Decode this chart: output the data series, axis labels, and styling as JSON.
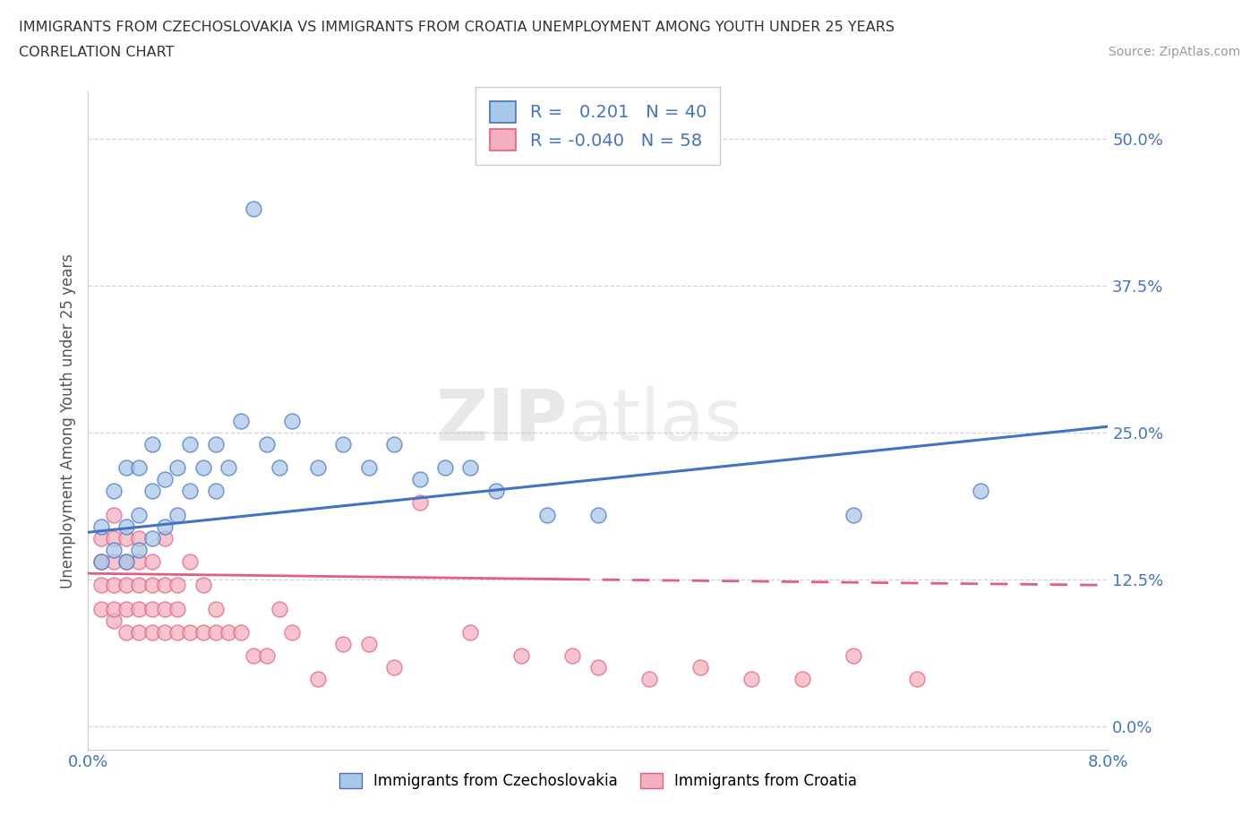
{
  "title_line1": "IMMIGRANTS FROM CZECHOSLOVAKIA VS IMMIGRANTS FROM CROATIA UNEMPLOYMENT AMONG YOUTH UNDER 25 YEARS",
  "title_line2": "CORRELATION CHART",
  "source": "Source: ZipAtlas.com",
  "ylabel": "Unemployment Among Youth under 25 years",
  "xlim": [
    0.0,
    0.08
  ],
  "ylim": [
    -0.02,
    0.54
  ],
  "yticks": [
    0.0,
    0.125,
    0.25,
    0.375,
    0.5
  ],
  "yticklabels": [
    "0.0%",
    "12.5%",
    "25.0%",
    "37.5%",
    "50.0%"
  ],
  "xticks": [
    0.0,
    0.02,
    0.04,
    0.06,
    0.08
  ],
  "xticklabels": [
    "0.0%",
    "",
    "",
    "",
    "8.0%"
  ],
  "color_czechoslovakia": "#a8c8e8",
  "color_croatia": "#f4b0c0",
  "line_color_czechoslovakia": "#4472c4",
  "line_color_croatia": "#e06080",
  "background_color": "#ffffff",
  "grid_color": "#c8c8c8",
  "watermark_zip": "ZIP",
  "watermark_atlas": "atlas",
  "czechoslovakia_x": [
    0.001,
    0.001,
    0.002,
    0.002,
    0.003,
    0.003,
    0.003,
    0.004,
    0.004,
    0.004,
    0.005,
    0.005,
    0.005,
    0.006,
    0.006,
    0.007,
    0.007,
    0.008,
    0.008,
    0.009,
    0.01,
    0.01,
    0.011,
    0.012,
    0.013,
    0.014,
    0.015,
    0.016,
    0.018,
    0.02,
    0.022,
    0.024,
    0.026,
    0.028,
    0.03,
    0.032,
    0.036,
    0.04,
    0.06,
    0.07
  ],
  "czechoslovakia_y": [
    0.14,
    0.17,
    0.15,
    0.2,
    0.14,
    0.17,
    0.22,
    0.15,
    0.18,
    0.22,
    0.16,
    0.2,
    0.24,
    0.17,
    0.21,
    0.18,
    0.22,
    0.2,
    0.24,
    0.22,
    0.2,
    0.24,
    0.22,
    0.26,
    0.44,
    0.24,
    0.22,
    0.26,
    0.22,
    0.24,
    0.22,
    0.24,
    0.21,
    0.22,
    0.22,
    0.2,
    0.18,
    0.18,
    0.18,
    0.2
  ],
  "croatia_x": [
    0.001,
    0.001,
    0.001,
    0.001,
    0.002,
    0.002,
    0.002,
    0.002,
    0.002,
    0.002,
    0.003,
    0.003,
    0.003,
    0.003,
    0.003,
    0.004,
    0.004,
    0.004,
    0.004,
    0.004,
    0.005,
    0.005,
    0.005,
    0.005,
    0.006,
    0.006,
    0.006,
    0.006,
    0.007,
    0.007,
    0.007,
    0.008,
    0.008,
    0.009,
    0.009,
    0.01,
    0.01,
    0.011,
    0.012,
    0.013,
    0.014,
    0.015,
    0.016,
    0.018,
    0.02,
    0.022,
    0.024,
    0.026,
    0.03,
    0.034,
    0.038,
    0.04,
    0.044,
    0.048,
    0.052,
    0.056,
    0.06,
    0.065
  ],
  "croatia_y": [
    0.1,
    0.12,
    0.14,
    0.16,
    0.09,
    0.1,
    0.12,
    0.14,
    0.16,
    0.18,
    0.08,
    0.1,
    0.12,
    0.14,
    0.16,
    0.08,
    0.1,
    0.12,
    0.14,
    0.16,
    0.08,
    0.1,
    0.12,
    0.14,
    0.08,
    0.1,
    0.12,
    0.16,
    0.08,
    0.1,
    0.12,
    0.08,
    0.14,
    0.08,
    0.12,
    0.08,
    0.1,
    0.08,
    0.08,
    0.06,
    0.06,
    0.1,
    0.08,
    0.04,
    0.07,
    0.07,
    0.05,
    0.19,
    0.08,
    0.06,
    0.06,
    0.05,
    0.04,
    0.05,
    0.04,
    0.04,
    0.06,
    0.04
  ],
  "trend_cz_x0": 0.0,
  "trend_cz_y0": 0.165,
  "trend_cz_x1": 0.08,
  "trend_cz_y1": 0.255,
  "trend_cr_solid_x0": 0.0,
  "trend_cr_solid_y0": 0.13,
  "trend_cr_solid_x1": 0.038,
  "trend_cr_solid_y1": 0.125,
  "trend_cr_dash_x0": 0.038,
  "trend_cr_dash_y0": 0.125,
  "trend_cr_dash_x1": 0.08,
  "trend_cr_dash_y1": 0.12
}
